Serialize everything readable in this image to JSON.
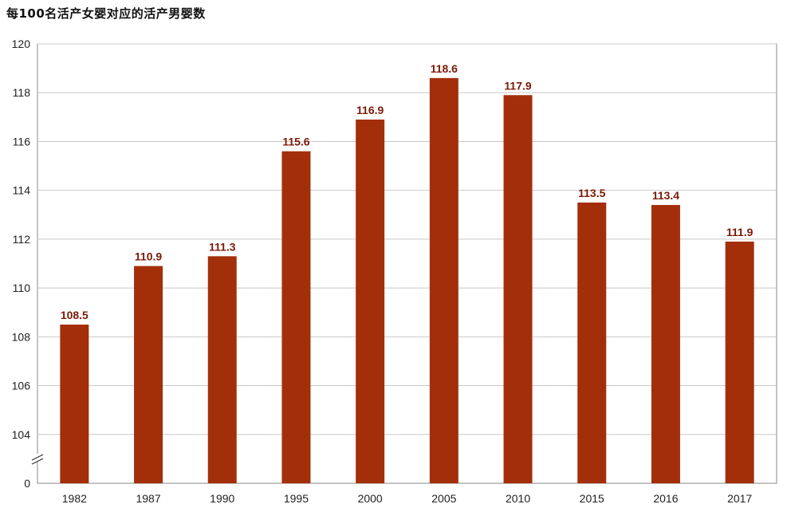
{
  "chart_data": {
    "type": "bar",
    "title": "每100名活产女婴对应的活产男婴数",
    "categories": [
      "1982",
      "1987",
      "1990",
      "1995",
      "2000",
      "2005",
      "2010",
      "2015",
      "2016",
      "2017"
    ],
    "values": [
      108.5,
      110.9,
      111.3,
      115.6,
      116.9,
      118.6,
      117.9,
      113.5,
      113.4,
      111.9
    ],
    "value_labels": [
      "108.5",
      "110.9",
      "111.3",
      "115.6",
      "116.9",
      "118.6",
      "117.9",
      "113.5",
      "113.4",
      "111.9"
    ],
    "y_ticks": [
      "0",
      "104",
      "106",
      "108",
      "110",
      "112",
      "114",
      "116",
      "118",
      "120"
    ],
    "ylim": [
      102,
      120
    ],
    "axis_break": true,
    "xlabel": "",
    "ylabel": "",
    "grid": true,
    "bar_color": "#a32f0a"
  }
}
